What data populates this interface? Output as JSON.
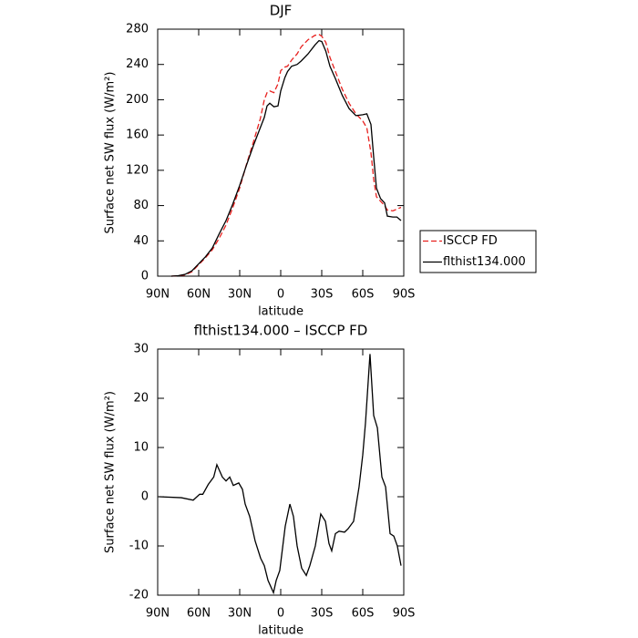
{
  "chart_data": [
    {
      "type": "line",
      "title": "DJF",
      "xlabel": "latitude",
      "ylabel": "Surface net SW flux (W/m²)",
      "x": [
        80,
        75,
        70,
        65,
        60,
        55,
        50,
        45,
        40,
        35,
        30,
        25,
        20,
        15,
        12,
        10,
        8,
        5,
        2,
        0,
        -3,
        -5,
        -8,
        -12,
        -15,
        -20,
        -25,
        -28,
        -30,
        -33,
        -36,
        -40,
        -45,
        -50,
        -55,
        -60,
        -63,
        -66,
        -68,
        -70,
        -73,
        -76,
        -78,
        -82,
        -85,
        -88
      ],
      "series": [
        {
          "name": "ISCCP FD",
          "color": "#e8201e",
          "dash": true,
          "values": [
            0,
            0.5,
            1.5,
            5,
            13,
            21,
            30,
            43,
            58,
            78,
            100,
            127,
            152,
            178,
            200,
            208,
            210,
            208,
            218,
            233,
            237,
            238,
            245,
            252,
            260,
            268,
            273,
            274,
            272,
            265,
            248,
            232,
            212,
            196,
            184,
            176,
            168,
            140,
            110,
            90,
            85,
            80,
            75,
            74,
            76,
            78
          ]
        },
        {
          "name": "flthist134.000",
          "color": "#000000",
          "dash": false,
          "values": [
            0,
            0.5,
            2,
            6,
            14,
            22,
            32,
            48,
            63,
            82,
            103,
            126,
            148,
            168,
            180,
            193,
            196,
            192,
            193,
            210,
            225,
            232,
            238,
            240,
            244,
            252,
            262,
            267,
            266,
            255,
            238,
            224,
            205,
            190,
            182,
            183,
            184,
            172,
            135,
            100,
            88,
            83,
            68,
            67,
            67,
            63
          ]
        }
      ],
      "xlim": [
        90,
        -90
      ],
      "xticks": [
        {
          "value": 90,
          "label": "90N"
        },
        {
          "value": 60,
          "label": "60N"
        },
        {
          "value": 30,
          "label": "30N"
        },
        0,
        {
          "value": -30,
          "label": "30S"
        },
        {
          "value": -60,
          "label": "60S"
        },
        {
          "value": -90,
          "label": "90S"
        }
      ],
      "ylim": [
        0,
        280
      ],
      "yticks": [
        0,
        40,
        80,
        120,
        160,
        200,
        240,
        280
      ],
      "legend": "right"
    },
    {
      "type": "line",
      "title": "flthist134.000 – ISCCP FD",
      "xlabel": "latitude",
      "ylabel": "Surface net SW flux (W/m²)",
      "x": [
        89,
        72.7,
        64,
        59.3,
        57,
        53,
        49,
        46.7,
        42.7,
        40,
        37.3,
        34.7,
        30.7,
        28,
        26,
        22.7,
        18.7,
        14.7,
        12,
        9.3,
        5.3,
        3.3,
        0.7,
        -3.3,
        -6.7,
        -9.3,
        -12,
        -15.3,
        -18.7,
        -21.3,
        -25.3,
        -29.3,
        -32.7,
        -35.3,
        -37.3,
        -40,
        -42.7,
        -46.7,
        -49.3,
        -53.3,
        -57.3,
        -60,
        -62,
        -65.3,
        -68,
        -70.7,
        -74,
        -76.7,
        -80,
        -82.7,
        -85.3,
        -88
      ],
      "values": [
        0,
        -0.2,
        -0.7,
        0.5,
        0.5,
        2.5,
        4,
        6.5,
        4,
        3.2,
        4,
        2.3,
        2.8,
        1.5,
        -1.5,
        -4,
        -9,
        -12.5,
        -14,
        -17,
        -19.5,
        -17,
        -15,
        -6,
        -1.5,
        -4,
        -10,
        -14.5,
        -16,
        -14,
        -10,
        -3.5,
        -5,
        -9.5,
        -11,
        -7.5,
        -7,
        -7.2,
        -6.5,
        -5,
        2,
        8.5,
        15,
        29,
        16.5,
        14,
        4,
        2,
        -7.5,
        -8,
        -10,
        -14
      ],
      "color": "#000000",
      "xlim": [
        90,
        -90
      ],
      "xticks": [
        {
          "value": 90,
          "label": "90N"
        },
        {
          "value": 60,
          "label": "60N"
        },
        {
          "value": 30,
          "label": "30N"
        },
        0,
        {
          "value": -30,
          "label": "30S"
        },
        {
          "value": -60,
          "label": "60S"
        },
        {
          "value": -90,
          "label": "90S"
        }
      ],
      "ylim": [
        -20,
        30
      ],
      "yticks": [
        -20,
        -10,
        0,
        10,
        20,
        30
      ]
    }
  ]
}
